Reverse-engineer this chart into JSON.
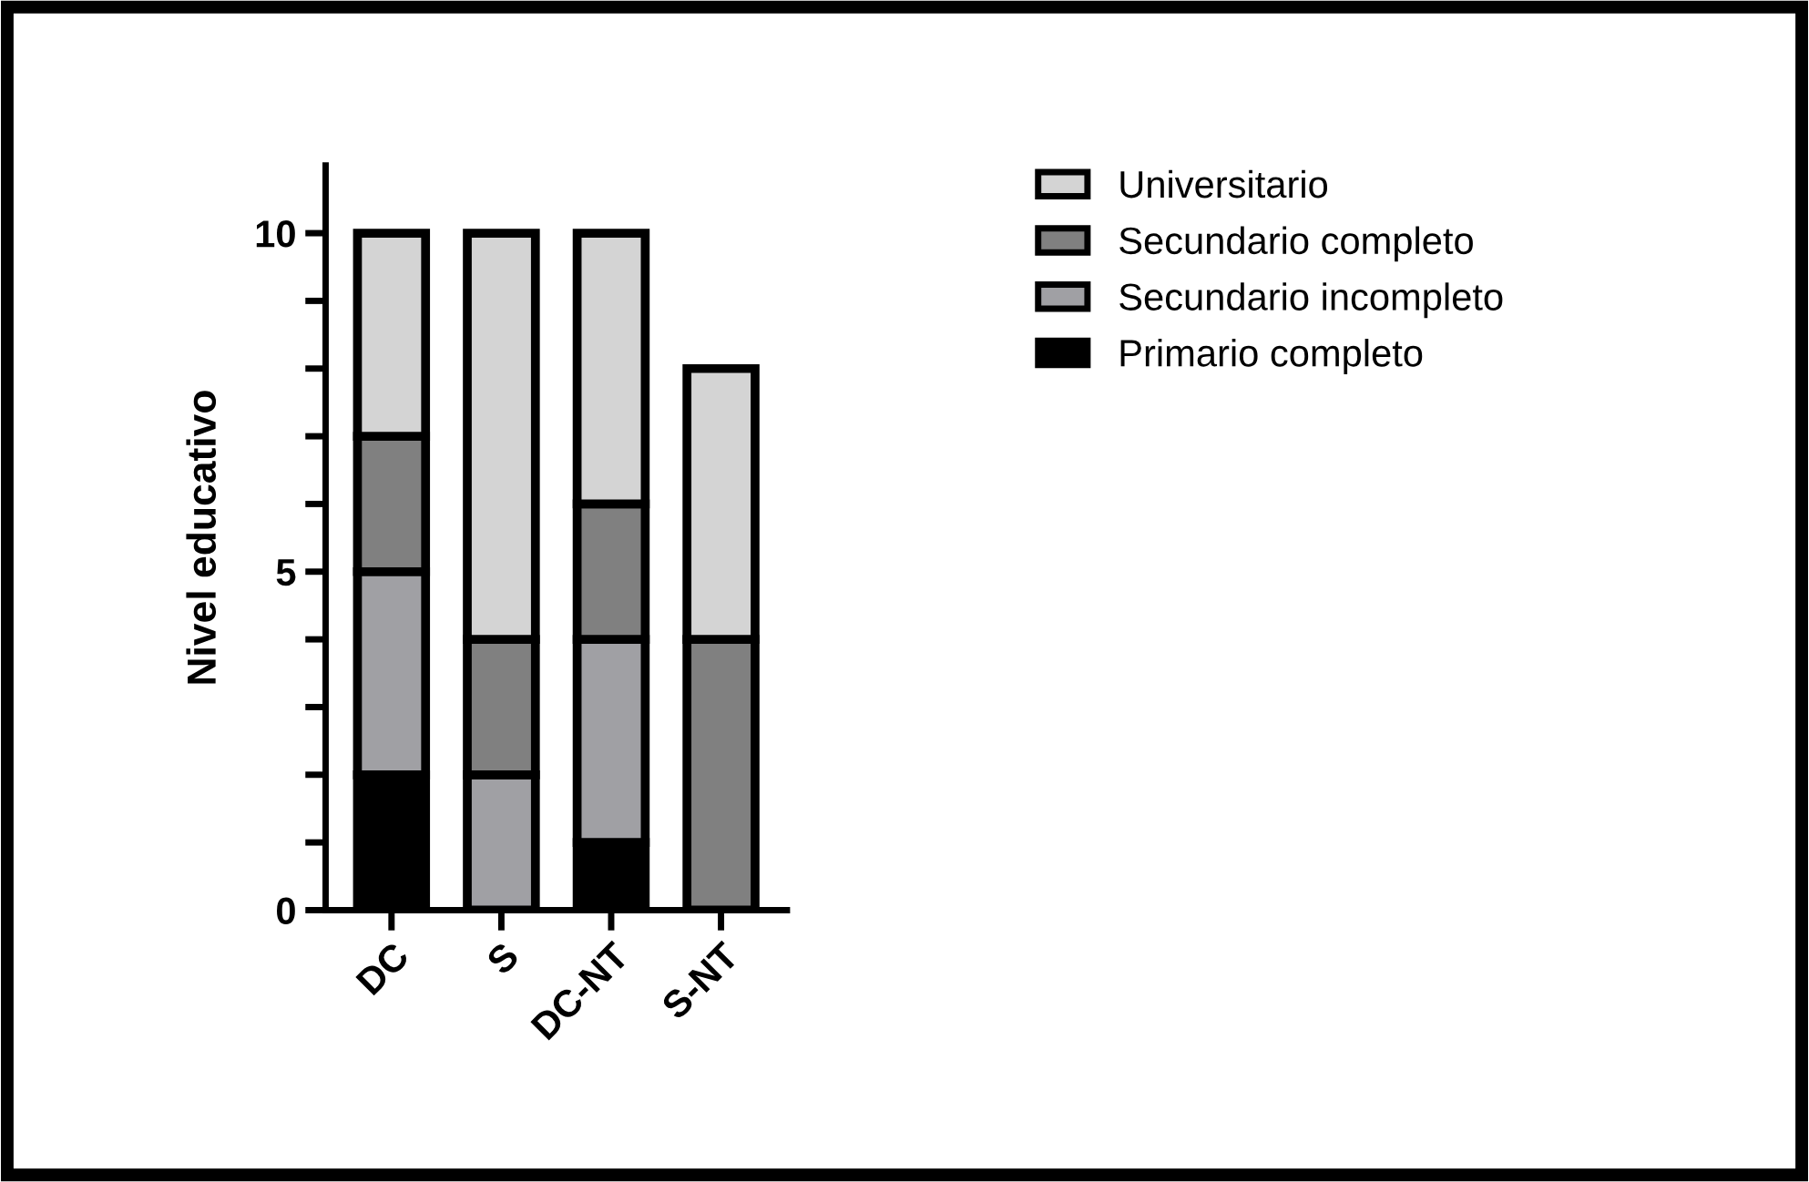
{
  "chart_data": {
    "type": "bar",
    "stacked": true,
    "ylabel": "Nivel educativo",
    "categories": [
      "DC",
      "S",
      "DC-NT",
      "S-NT"
    ],
    "series": [
      {
        "name": "Primario completo",
        "color": "#000000",
        "values": [
          2,
          0,
          1,
          0
        ]
      },
      {
        "name": "Secundario incompleto",
        "color": "#a0a0a4",
        "values": [
          3,
          2,
          3,
          0
        ]
      },
      {
        "name": "Secundario completo",
        "color": "#808080",
        "values": [
          2,
          2,
          2,
          4
        ]
      },
      {
        "name": "Universitario",
        "color": "#d4d4d4",
        "values": [
          3,
          6,
          4,
          4
        ]
      }
    ],
    "ylim": [
      0,
      11
    ],
    "yticks": [
      0,
      {
        "value": 1,
        "label": null
      },
      {
        "value": 2,
        "label": null
      },
      {
        "value": 3,
        "label": null
      },
      {
        "value": 4,
        "label": null
      },
      5,
      {
        "value": 6,
        "label": null
      },
      {
        "value": 7,
        "label": null
      },
      {
        "value": 8,
        "label": null
      },
      {
        "value": 9,
        "label": null
      },
      10
    ],
    "grid": false,
    "legend": "top right"
  }
}
